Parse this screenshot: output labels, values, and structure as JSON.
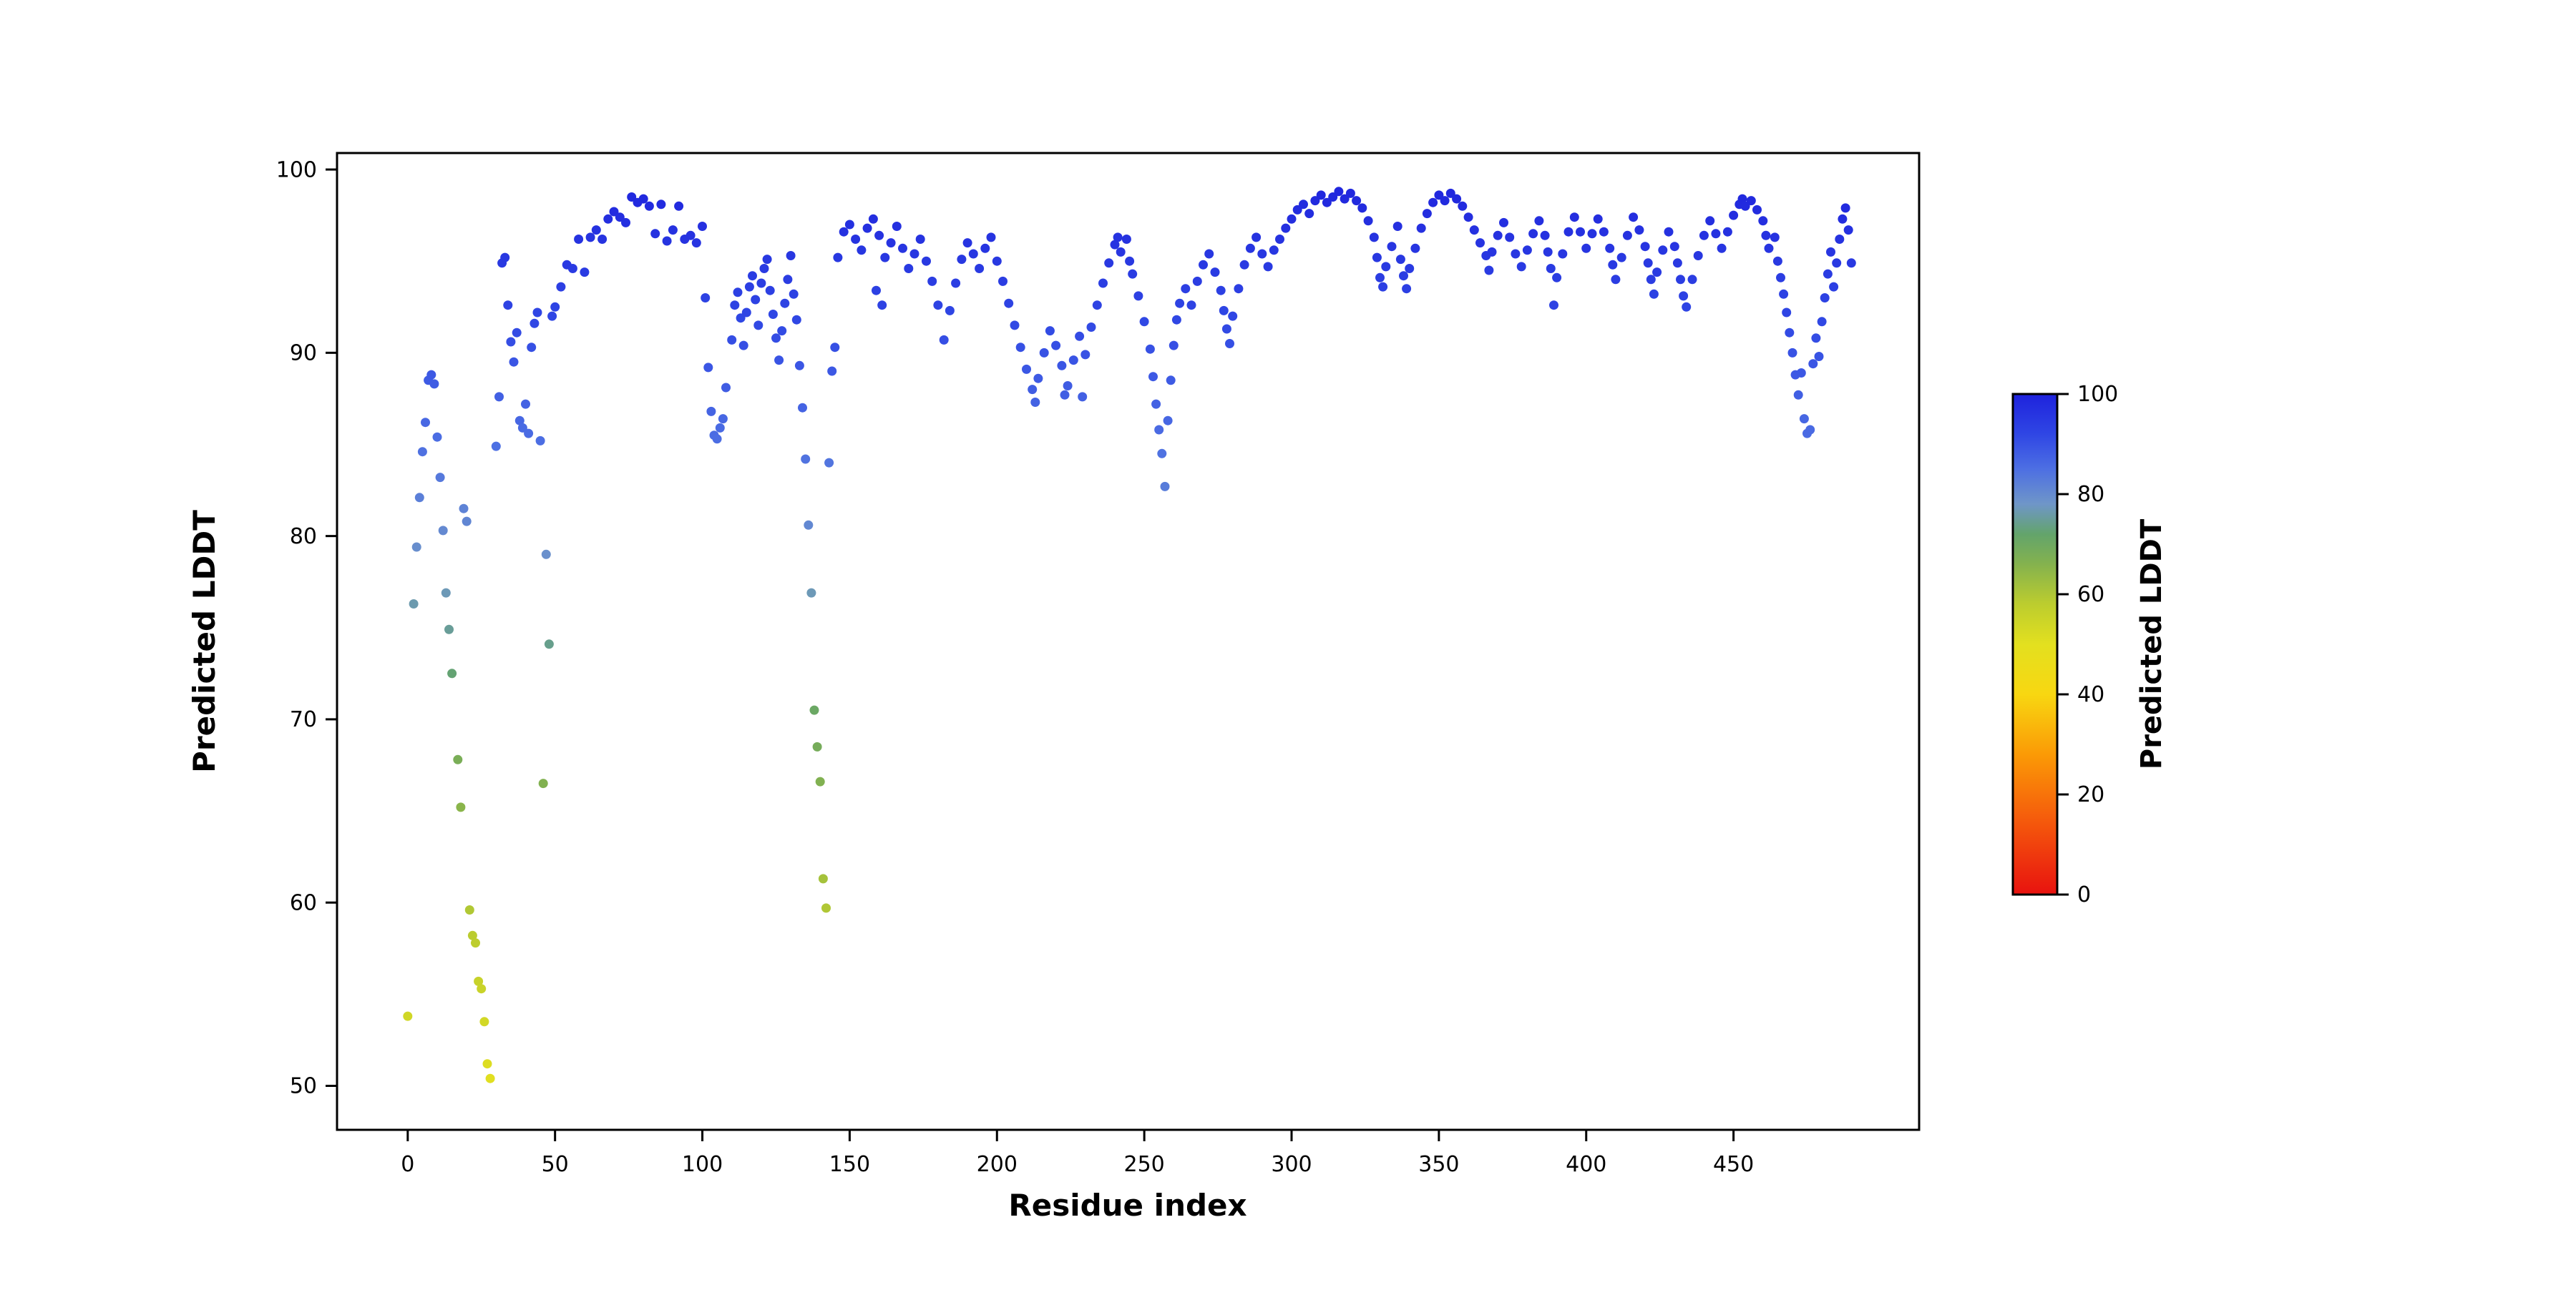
{
  "page": {
    "background_color": "#ffffff",
    "spine_color": "#000000"
  },
  "chart_data": {
    "type": "scatter",
    "title": "",
    "xlabel": "Residue index",
    "ylabel": "Predicted LDDT",
    "xlim": [
      -24,
      513
    ],
    "ylim": [
      47.6,
      100.9
    ],
    "xticks": [
      0,
      50,
      100,
      150,
      200,
      250,
      300,
      350,
      400,
      450
    ],
    "yticks": [
      50,
      60,
      70,
      80,
      90,
      100
    ],
    "grid": false,
    "legend": "none",
    "colorbar": {
      "label": "Predicted LDDT",
      "ticks": [
        0,
        20,
        40,
        60,
        80,
        100
      ],
      "min": 0,
      "max": 100
    },
    "colormap_stops": [
      [
        0,
        "#e8120f"
      ],
      [
        15,
        "#f55b0c"
      ],
      [
        28,
        "#fb9a06"
      ],
      [
        40,
        "#f8d711"
      ],
      [
        50,
        "#e3e01f"
      ],
      [
        58,
        "#bccd2e"
      ],
      [
        66,
        "#84b24e"
      ],
      [
        72,
        "#63a46b"
      ],
      [
        78,
        "#6f96c8"
      ],
      [
        85,
        "#4d6fe3"
      ],
      [
        92,
        "#2f46e4"
      ],
      [
        100,
        "#1e22dd"
      ]
    ],
    "points": [
      [
        0,
        53.8
      ],
      [
        2,
        76.3
      ],
      [
        3,
        79.4
      ],
      [
        4,
        82.1
      ],
      [
        5,
        84.6
      ],
      [
        6,
        86.2
      ],
      [
        7,
        88.5
      ],
      [
        8,
        88.8
      ],
      [
        9,
        88.3
      ],
      [
        10,
        85.4
      ],
      [
        11,
        83.2
      ],
      [
        12,
        80.3
      ],
      [
        13,
        76.9
      ],
      [
        14,
        74.9
      ],
      [
        15,
        72.5
      ],
      [
        17,
        67.8
      ],
      [
        18,
        65.2
      ],
      [
        19,
        81.5
      ],
      [
        20,
        80.8
      ],
      [
        21,
        59.6
      ],
      [
        22,
        58.2
      ],
      [
        23,
        57.8
      ],
      [
        24,
        55.7
      ],
      [
        25,
        55.3
      ],
      [
        26,
        53.5
      ],
      [
        27,
        51.2
      ],
      [
        28,
        50.4
      ],
      [
        30,
        84.9
      ],
      [
        31,
        87.6
      ],
      [
        32,
        94.9
      ],
      [
        33,
        95.2
      ],
      [
        34,
        92.6
      ],
      [
        35,
        90.6
      ],
      [
        36,
        89.5
      ],
      [
        37,
        91.1
      ],
      [
        38,
        86.3
      ],
      [
        39,
        85.9
      ],
      [
        40,
        87.2
      ],
      [
        41,
        85.6
      ],
      [
        42,
        90.3
      ],
      [
        43,
        91.6
      ],
      [
        44,
        92.2
      ],
      [
        45,
        85.2
      ],
      [
        46,
        66.5
      ],
      [
        47,
        79.0
      ],
      [
        48,
        74.1
      ],
      [
        49,
        92.0
      ],
      [
        50,
        92.5
      ],
      [
        52,
        93.6
      ],
      [
        54,
        94.8
      ],
      [
        56,
        94.6
      ],
      [
        58,
        96.2
      ],
      [
        60,
        94.4
      ],
      [
        62,
        96.3
      ],
      [
        64,
        96.7
      ],
      [
        66,
        96.2
      ],
      [
        68,
        97.3
      ],
      [
        70,
        97.7
      ],
      [
        72,
        97.4
      ],
      [
        74,
        97.1
      ],
      [
        76,
        98.5
      ],
      [
        78,
        98.2
      ],
      [
        80,
        98.4
      ],
      [
        82,
        98.0
      ],
      [
        84,
        96.5
      ],
      [
        86,
        98.1
      ],
      [
        88,
        96.1
      ],
      [
        90,
        96.7
      ],
      [
        92,
        98.0
      ],
      [
        94,
        96.2
      ],
      [
        96,
        96.4
      ],
      [
        98,
        96.0
      ],
      [
        100,
        96.9
      ],
      [
        101,
        93.0
      ],
      [
        102,
        89.2
      ],
      [
        103,
        86.8
      ],
      [
        104,
        85.5
      ],
      [
        105,
        85.3
      ],
      [
        106,
        85.9
      ],
      [
        107,
        86.4
      ],
      [
        108,
        88.1
      ],
      [
        110,
        90.7
      ],
      [
        111,
        92.6
      ],
      [
        112,
        93.3
      ],
      [
        113,
        91.9
      ],
      [
        114,
        90.4
      ],
      [
        115,
        92.2
      ],
      [
        116,
        93.6
      ],
      [
        117,
        94.2
      ],
      [
        118,
        92.9
      ],
      [
        119,
        91.5
      ],
      [
        120,
        93.8
      ],
      [
        121,
        94.6
      ],
      [
        122,
        95.1
      ],
      [
        123,
        93.4
      ],
      [
        124,
        92.1
      ],
      [
        125,
        90.8
      ],
      [
        126,
        89.6
      ],
      [
        127,
        91.2
      ],
      [
        128,
        92.7
      ],
      [
        129,
        94.0
      ],
      [
        130,
        95.3
      ],
      [
        131,
        93.2
      ],
      [
        132,
        91.8
      ],
      [
        133,
        89.3
      ],
      [
        134,
        87.0
      ],
      [
        135,
        84.2
      ],
      [
        136,
        80.6
      ],
      [
        137,
        76.9
      ],
      [
        138,
        70.5
      ],
      [
        139,
        68.5
      ],
      [
        140,
        66.6
      ],
      [
        141,
        61.3
      ],
      [
        142,
        59.7
      ],
      [
        143,
        84.0
      ],
      [
        144,
        89.0
      ],
      [
        145,
        90.3
      ],
      [
        146,
        95.2
      ],
      [
        148,
        96.6
      ],
      [
        150,
        97.0
      ],
      [
        152,
        96.2
      ],
      [
        154,
        95.6
      ],
      [
        156,
        96.8
      ],
      [
        158,
        97.3
      ],
      [
        159,
        93.4
      ],
      [
        160,
        96.4
      ],
      [
        161,
        92.6
      ],
      [
        162,
        95.2
      ],
      [
        164,
        96.0
      ],
      [
        166,
        96.9
      ],
      [
        168,
        95.7
      ],
      [
        170,
        94.6
      ],
      [
        172,
        95.4
      ],
      [
        174,
        96.2
      ],
      [
        176,
        95.0
      ],
      [
        178,
        93.9
      ],
      [
        180,
        92.6
      ],
      [
        182,
        90.7
      ],
      [
        184,
        92.3
      ],
      [
        186,
        93.8
      ],
      [
        188,
        95.1
      ],
      [
        190,
        96.0
      ],
      [
        192,
        95.4
      ],
      [
        194,
        94.6
      ],
      [
        196,
        95.7
      ],
      [
        198,
        96.3
      ],
      [
        200,
        95.0
      ],
      [
        202,
        93.9
      ],
      [
        204,
        92.7
      ],
      [
        206,
        91.5
      ],
      [
        208,
        90.3
      ],
      [
        210,
        89.1
      ],
      [
        212,
        88.0
      ],
      [
        213,
        87.3
      ],
      [
        214,
        88.6
      ],
      [
        216,
        90.0
      ],
      [
        218,
        91.2
      ],
      [
        220,
        90.4
      ],
      [
        222,
        89.3
      ],
      [
        223,
        87.7
      ],
      [
        224,
        88.2
      ],
      [
        226,
        89.6
      ],
      [
        228,
        90.9
      ],
      [
        229,
        87.6
      ],
      [
        230,
        89.9
      ],
      [
        232,
        91.4
      ],
      [
        234,
        92.6
      ],
      [
        236,
        93.8
      ],
      [
        238,
        94.9
      ],
      [
        240,
        95.9
      ],
      [
        241,
        96.3
      ],
      [
        242,
        95.5
      ],
      [
        244,
        96.2
      ],
      [
        245,
        95.0
      ],
      [
        246,
        94.3
      ],
      [
        248,
        93.1
      ],
      [
        250,
        91.7
      ],
      [
        252,
        90.2
      ],
      [
        253,
        88.7
      ],
      [
        254,
        87.2
      ],
      [
        255,
        85.8
      ],
      [
        256,
        84.5
      ],
      [
        257,
        82.7
      ],
      [
        258,
        86.3
      ],
      [
        259,
        88.5
      ],
      [
        260,
        90.4
      ],
      [
        261,
        91.8
      ],
      [
        262,
        92.7
      ],
      [
        264,
        93.5
      ],
      [
        266,
        92.6
      ],
      [
        268,
        93.9
      ],
      [
        270,
        94.8
      ],
      [
        272,
        95.4
      ],
      [
        274,
        94.4
      ],
      [
        276,
        93.4
      ],
      [
        277,
        92.3
      ],
      [
        278,
        91.3
      ],
      [
        279,
        90.5
      ],
      [
        280,
        92.0
      ],
      [
        282,
        93.5
      ],
      [
        284,
        94.8
      ],
      [
        286,
        95.7
      ],
      [
        288,
        96.3
      ],
      [
        290,
        95.4
      ],
      [
        292,
        94.7
      ],
      [
        294,
        95.6
      ],
      [
        296,
        96.2
      ],
      [
        298,
        96.8
      ],
      [
        300,
        97.3
      ],
      [
        302,
        97.8
      ],
      [
        304,
        98.1
      ],
      [
        306,
        97.6
      ],
      [
        308,
        98.3
      ],
      [
        310,
        98.6
      ],
      [
        312,
        98.2
      ],
      [
        314,
        98.5
      ],
      [
        316,
        98.8
      ],
      [
        318,
        98.4
      ],
      [
        320,
        98.7
      ],
      [
        322,
        98.3
      ],
      [
        324,
        97.9
      ],
      [
        326,
        97.2
      ],
      [
        328,
        96.3
      ],
      [
        329,
        95.2
      ],
      [
        330,
        94.1
      ],
      [
        331,
        93.6
      ],
      [
        332,
        94.7
      ],
      [
        334,
        95.8
      ],
      [
        336,
        96.9
      ],
      [
        337,
        95.1
      ],
      [
        338,
        94.2
      ],
      [
        339,
        93.5
      ],
      [
        340,
        94.6
      ],
      [
        342,
        95.7
      ],
      [
        344,
        96.8
      ],
      [
        346,
        97.6
      ],
      [
        348,
        98.2
      ],
      [
        350,
        98.6
      ],
      [
        352,
        98.3
      ],
      [
        354,
        98.7
      ],
      [
        356,
        98.4
      ],
      [
        358,
        98.0
      ],
      [
        360,
        97.4
      ],
      [
        362,
        96.7
      ],
      [
        364,
        96.0
      ],
      [
        366,
        95.3
      ],
      [
        367,
        94.5
      ],
      [
        368,
        95.5
      ],
      [
        370,
        96.4
      ],
      [
        372,
        97.1
      ],
      [
        374,
        96.3
      ],
      [
        376,
        95.4
      ],
      [
        378,
        94.7
      ],
      [
        380,
        95.6
      ],
      [
        382,
        96.5
      ],
      [
        384,
        97.2
      ],
      [
        386,
        96.4
      ],
      [
        387,
        95.5
      ],
      [
        388,
        94.6
      ],
      [
        389,
        92.6
      ],
      [
        390,
        94.1
      ],
      [
        392,
        95.4
      ],
      [
        394,
        96.6
      ],
      [
        396,
        97.4
      ],
      [
        398,
        96.6
      ],
      [
        400,
        95.7
      ],
      [
        402,
        96.5
      ],
      [
        404,
        97.3
      ],
      [
        406,
        96.6
      ],
      [
        408,
        95.7
      ],
      [
        409,
        94.8
      ],
      [
        410,
        94.0
      ],
      [
        412,
        95.2
      ],
      [
        414,
        96.4
      ],
      [
        416,
        97.4
      ],
      [
        418,
        96.7
      ],
      [
        420,
        95.8
      ],
      [
        421,
        94.9
      ],
      [
        422,
        94.0
      ],
      [
        423,
        93.2
      ],
      [
        424,
        94.4
      ],
      [
        426,
        95.6
      ],
      [
        428,
        96.6
      ],
      [
        430,
        95.8
      ],
      [
        431,
        94.9
      ],
      [
        432,
        94.0
      ],
      [
        433,
        93.1
      ],
      [
        434,
        92.5
      ],
      [
        436,
        94.0
      ],
      [
        438,
        95.3
      ],
      [
        440,
        96.4
      ],
      [
        442,
        97.2
      ],
      [
        444,
        96.5
      ],
      [
        446,
        95.7
      ],
      [
        448,
        96.6
      ],
      [
        450,
        97.5
      ],
      [
        452,
        98.1
      ],
      [
        453,
        98.4
      ],
      [
        454,
        98.0
      ],
      [
        456,
        98.3
      ],
      [
        458,
        97.8
      ],
      [
        460,
        97.2
      ],
      [
        461,
        96.4
      ],
      [
        462,
        95.7
      ],
      [
        464,
        96.3
      ],
      [
        465,
        95.0
      ],
      [
        466,
        94.1
      ],
      [
        467,
        93.2
      ],
      [
        468,
        92.2
      ],
      [
        469,
        91.1
      ],
      [
        470,
        90.0
      ],
      [
        471,
        88.8
      ],
      [
        472,
        87.7
      ],
      [
        473,
        88.9
      ],
      [
        474,
        86.4
      ],
      [
        475,
        85.6
      ],
      [
        476,
        85.8
      ],
      [
        477,
        89.4
      ],
      [
        478,
        90.8
      ],
      [
        479,
        89.8
      ],
      [
        480,
        91.7
      ],
      [
        481,
        93.0
      ],
      [
        482,
        94.3
      ],
      [
        483,
        95.5
      ],
      [
        484,
        93.6
      ],
      [
        485,
        94.9
      ],
      [
        486,
        96.2
      ],
      [
        487,
        97.3
      ],
      [
        488,
        97.9
      ],
      [
        489,
        96.7
      ],
      [
        490,
        94.9
      ]
    ]
  }
}
